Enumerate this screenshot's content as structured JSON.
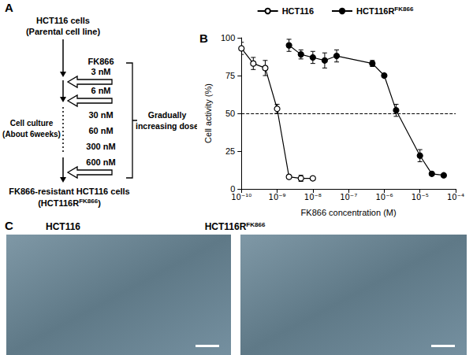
{
  "panel_a": {
    "panel_label": "A",
    "top_text": [
      "HCT116 cells",
      "(Parental cell line)"
    ],
    "drug": "FK866",
    "doses": [
      "3 nM",
      "6 nM",
      "30 nM",
      "60 nM",
      "300 nM",
      "600 nM"
    ],
    "side_text": [
      "Cell culture",
      "(About 6weeks)"
    ],
    "bracket_text": [
      "Gradually",
      "increasing dose"
    ],
    "bottom_text": "FK866-resistant HCT116 cells",
    "bottom_name": {
      "before": "(HCT116R",
      "sup": "FK866",
      "after": ")"
    }
  },
  "chart_data": {
    "type": "line",
    "panel_label": "B",
    "x_label": "FK866 concentration (M)",
    "y_label": "Cell activity (%)",
    "log": "x",
    "grid": false,
    "legend": "top",
    "xlim": [
      1e-10,
      0.0001
    ],
    "xticks": [
      {
        "value": 1e-10,
        "label": "10⁻¹⁰"
      },
      {
        "value": 1e-09,
        "label": "10⁻⁹"
      },
      {
        "value": 1e-08,
        "label": "10⁻⁸"
      },
      {
        "value": 1e-07,
        "label": "10⁻⁷"
      },
      {
        "value": 1e-06,
        "label": "10⁻⁶"
      },
      {
        "value": 1e-05,
        "label": "10⁻⁵"
      },
      {
        "value": 0.0001,
        "label": "10⁻⁴"
      }
    ],
    "ylim": [
      0,
      100
    ],
    "yticks": [
      0,
      25,
      50,
      75,
      100
    ],
    "hline": 50,
    "series": [
      {
        "name": "HCT116",
        "color": "#000000",
        "marker": "open_circle",
        "x": [
          1e-10,
          2.15e-10,
          4.64e-10,
          1e-09,
          2.15e-09,
          4.64e-09,
          1e-08
        ],
        "values": [
          93,
          83,
          80,
          53,
          8,
          7,
          7
        ],
        "errors": [
          4,
          4,
          5,
          3,
          1,
          2,
          1
        ]
      },
      {
        "name": "HCT116R",
        "name_sup": "FK866",
        "color": "#000000",
        "marker": "circle",
        "x": [
          2.15e-09,
          4.64e-09,
          1e-08,
          2.15e-08,
          4.64e-08,
          4.64e-07,
          1e-06,
          2.15e-06,
          1e-05,
          2.15e-05,
          4.64e-05
        ],
        "values": [
          95,
          89,
          87,
          85,
          88,
          83,
          75,
          52,
          22,
          10,
          9
        ],
        "errors": [
          4,
          3,
          4,
          5,
          4,
          2,
          1,
          4,
          4,
          1,
          1
        ]
      }
    ]
  },
  "panel_c": {
    "panel_label": "C",
    "images": [
      {
        "title": "HCT116"
      },
      {
        "title": "HCT116R",
        "title_sup": "FK866"
      }
    ]
  }
}
